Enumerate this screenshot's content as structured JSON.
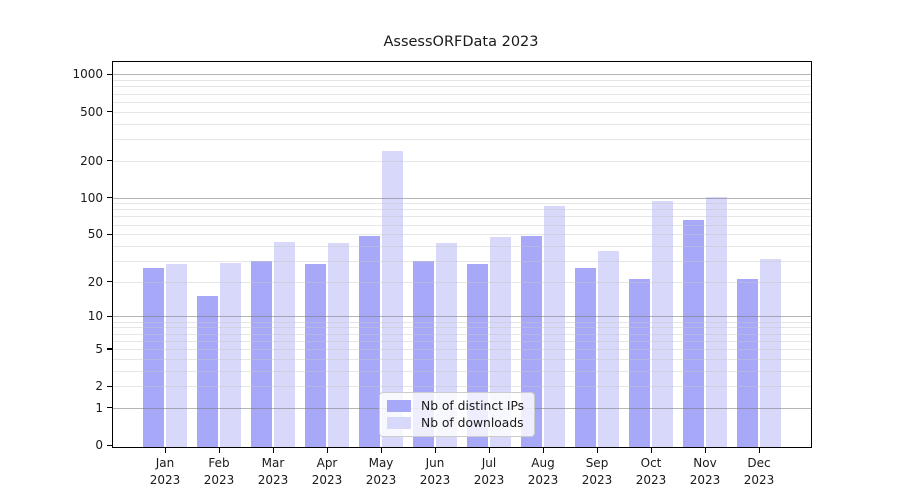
{
  "chart_data": {
    "type": "bar",
    "title": "AssessORFData 2023",
    "yscale": "log10(1+x)",
    "ylim": [
      0,
      1236
    ],
    "grid": "on",
    "legend_position": "lower center",
    "categories": [
      {
        "line1": "Jan",
        "line2": "2023"
      },
      {
        "line1": "Feb",
        "line2": "2023"
      },
      {
        "line1": "Mar",
        "line2": "2023"
      },
      {
        "line1": "Apr",
        "line2": "2023"
      },
      {
        "line1": "May",
        "line2": "2023"
      },
      {
        "line1": "Jun",
        "line2": "2023"
      },
      {
        "line1": "Jul",
        "line2": "2023"
      },
      {
        "line1": "Aug",
        "line2": "2023"
      },
      {
        "line1": "Sep",
        "line2": "2023"
      },
      {
        "line1": "Oct",
        "line2": "2023"
      },
      {
        "line1": "Nov",
        "line2": "2023"
      },
      {
        "line1": "Dec",
        "line2": "2023"
      }
    ],
    "series": [
      {
        "name": "Nb of distinct IPs",
        "color": "#a8a8f8",
        "values": [
          26,
          15,
          30,
          28,
          48,
          30,
          28,
          48,
          26,
          21,
          66,
          21
        ]
      },
      {
        "name": "Nb of downloads",
        "color": "#d8d8fa",
        "values": [
          28,
          29,
          43,
          42,
          238,
          42,
          47,
          85,
          36,
          93,
          101,
          31
        ]
      }
    ],
    "yticks": [
      {
        "value": 0,
        "label": "0"
      },
      {
        "value": 1,
        "label": "1"
      },
      {
        "value": 2,
        "label": "2"
      },
      {
        "value": 5,
        "label": "5"
      },
      {
        "value": 10,
        "label": "10"
      },
      {
        "value": 20,
        "label": "20"
      },
      {
        "value": 50,
        "label": "50"
      },
      {
        "value": 100,
        "label": "100"
      },
      {
        "value": 200,
        "label": "200"
      },
      {
        "value": 500,
        "label": "500"
      },
      {
        "value": 1000,
        "label": "1000"
      }
    ],
    "major_grid_values": [
      1,
      10,
      100,
      1000
    ],
    "minor_grid_values": [
      2,
      3,
      4,
      5,
      6,
      7,
      8,
      9,
      20,
      30,
      40,
      50,
      60,
      70,
      80,
      90,
      200,
      300,
      400,
      500,
      600,
      700,
      800,
      900
    ]
  },
  "colors": {
    "axis": "#000000",
    "text": "#1a1a1a",
    "background": "#ffffff"
  }
}
